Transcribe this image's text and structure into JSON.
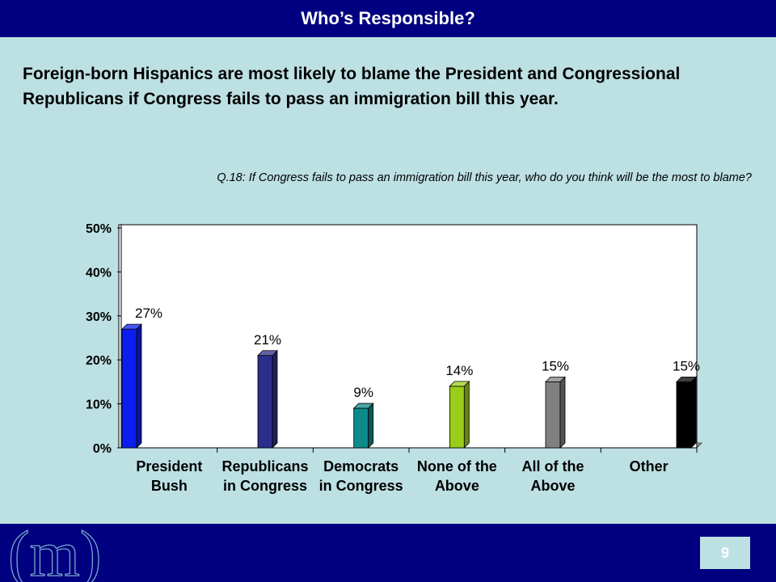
{
  "header": {
    "title": "Who’s Responsible?"
  },
  "headline": "Foreign-born Hispanics are most likely to blame the President and Congressional Republicans if Congress fails to pass an immigration bill this year.",
  "question": "Q.18:  If Congress fails to pass an immigration bill this year, who do you think will be the most to blame?",
  "footer": {
    "logo_text": "(m)",
    "page_number": "9"
  },
  "colors": {
    "header_bg": "#000080",
    "background": "#bde0e3",
    "plot_bg": "#ffffff"
  },
  "chart_data": {
    "type": "bar",
    "categories": [
      [
        "President",
        "Bush"
      ],
      [
        "Republicans",
        "in Congress"
      ],
      [
        "Democrats",
        "in Congress"
      ],
      [
        "None of the",
        "Above"
      ],
      [
        "All of the",
        "Above"
      ],
      [
        "Other"
      ]
    ],
    "values": [
      27,
      21,
      9,
      14,
      15,
      15
    ],
    "data_labels": [
      "27%",
      "21%",
      "9%",
      "14%",
      "15%",
      "15%"
    ],
    "bar_colors": [
      "#0a1ef0",
      "#2b2f8c",
      "#0d8a8a",
      "#9acc1a",
      "#808080",
      "#000000"
    ],
    "ylim": [
      0,
      50
    ],
    "yticks": [
      0,
      10,
      20,
      30,
      40,
      50
    ],
    "ytick_labels": [
      "0%",
      "10%",
      "20%",
      "30%",
      "40%",
      "50%"
    ],
    "xlabel": "",
    "ylabel": "",
    "title": "",
    "grid": false,
    "legend": false,
    "style": "3d-column"
  }
}
